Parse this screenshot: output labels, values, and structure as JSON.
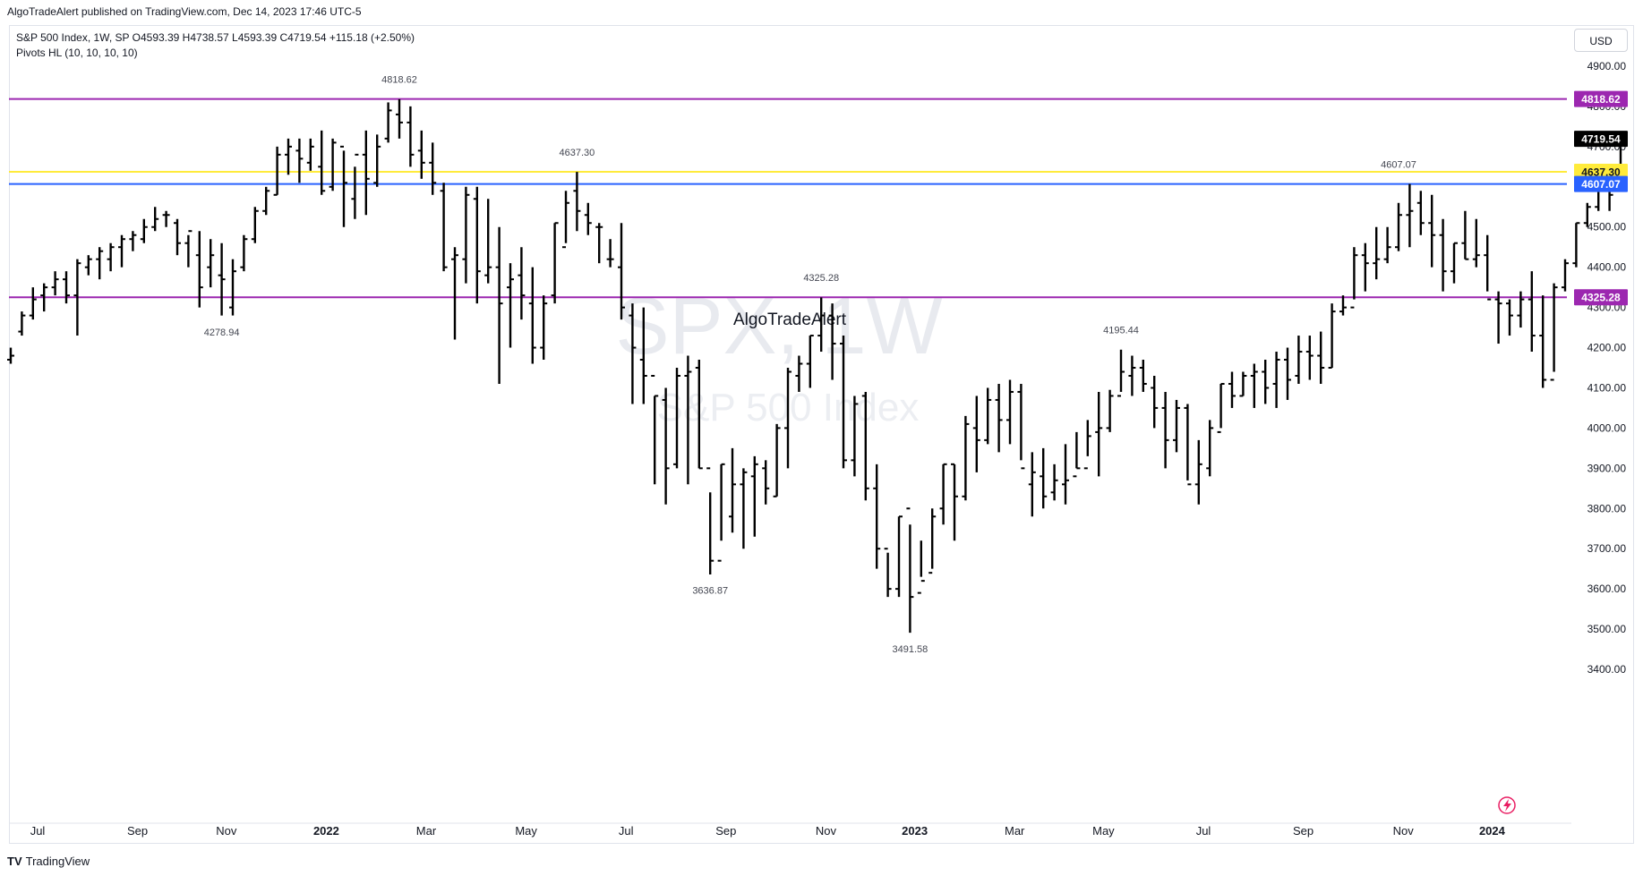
{
  "header": {
    "published": "AlgoTradeAlert published on TradingView.com, Dec 14, 2023 17:46 UTC-5"
  },
  "legend": {
    "line1": "S&P 500 Index, 1W, SP  O4593.39  H4738.57  L4593.39  C4719.54  +115.18 (+2.50%)",
    "line2": "Pivots HL (10, 10, 10, 10)"
  },
  "currency_button": "USD",
  "watermark": {
    "symbol": "SPX, 1W",
    "name": "S&P 500 Index",
    "author": "AlgoTradeAlert"
  },
  "footer": {
    "brand": "TradingView",
    "logo_text": "TV"
  },
  "colors": {
    "bars": "#000000",
    "line_4818": "#9c27b0",
    "line_4637": "#ffeb3b",
    "line_4607": "#2962ff",
    "line_4325": "#9c27b0",
    "last_price_bg": "#000000"
  },
  "chart_data": {
    "type": "ohlc",
    "interval": "1W",
    "y_ticks": [
      3400,
      3500,
      3600,
      3700,
      3800,
      3900,
      4000,
      4100,
      4200,
      4300,
      4400,
      4500,
      4600,
      4700,
      4800,
      4900
    ],
    "y_tick_labels": [
      "3400.00",
      "3500.00",
      "3600.00",
      "3700.00",
      "3800.00",
      "3900.00",
      "4000.00",
      "4100.00",
      "4200.00",
      "4300.00",
      "4400.00",
      "4500.00",
      "4600.00",
      "4700.00",
      "4800.00",
      "4900.00"
    ],
    "x_tick_labels": [
      {
        "label": "Jul",
        "bar": 0
      },
      {
        "label": "Sep",
        "bar": 9
      },
      {
        "label": "Nov",
        "bar": 17
      },
      {
        "label": "2022",
        "bar": 26,
        "bold": true
      },
      {
        "label": "Mar",
        "bar": 35
      },
      {
        "label": "May",
        "bar": 44
      },
      {
        "label": "Jul",
        "bar": 53
      },
      {
        "label": "Sep",
        "bar": 62
      },
      {
        "label": "Nov",
        "bar": 71
      },
      {
        "label": "2023",
        "bar": 79,
        "bold": true
      },
      {
        "label": "Mar",
        "bar": 88
      },
      {
        "label": "May",
        "bar": 96
      },
      {
        "label": "Jul",
        "bar": 105
      },
      {
        "label": "Sep",
        "bar": 114
      },
      {
        "label": "Nov",
        "bar": 123
      },
      {
        "label": "2024",
        "bar": 131,
        "bold": true
      }
    ],
    "bars": [
      [
        4170,
        4200,
        4160,
        4180
      ],
      [
        4240,
        4290,
        4230,
        4280
      ],
      [
        4280,
        4350,
        4270,
        4320
      ],
      [
        4330,
        4360,
        4290,
        4350
      ],
      [
        4350,
        4390,
        4330,
        4370
      ],
      [
        4370,
        4390,
        4310,
        4330
      ],
      [
        4330,
        4420,
        4230,
        4410
      ],
      [
        4400,
        4430,
        4380,
        4420
      ],
      [
        4420,
        4450,
        4370,
        4440
      ],
      [
        4420,
        4460,
        4390,
        4450
      ],
      [
        4450,
        4480,
        4400,
        4470
      ],
      [
        4470,
        4490,
        4440,
        4480
      ],
      [
        4470,
        4520,
        4460,
        4500
      ],
      [
        4500,
        4550,
        4490,
        4520
      ],
      [
        4530,
        4540,
        4500,
        4530
      ],
      [
        4510,
        4520,
        4430,
        4460
      ],
      [
        4460,
        4480,
        4400,
        4490
      ],
      [
        4430,
        4490,
        4300,
        4350
      ],
      [
        4400,
        4470,
        4350,
        4430
      ],
      [
        4380,
        4460,
        4280,
        4370
      ],
      [
        4300,
        4420,
        4280,
        4390
      ],
      [
        4400,
        4480,
        4390,
        4470
      ],
      [
        4470,
        4550,
        4460,
        4540
      ],
      [
        4540,
        4600,
        4530,
        4590
      ],
      [
        4580,
        4700,
        4580,
        4680
      ],
      [
        4680,
        4720,
        4630,
        4700
      ],
      [
        4690,
        4720,
        4610,
        4670
      ],
      [
        4660,
        4720,
        4640,
        4700
      ],
      [
        4650,
        4740,
        4580,
        4590
      ],
      [
        4600,
        4720,
        4590,
        4710
      ],
      [
        4700,
        4690,
        4500,
        4610
      ],
      [
        4570,
        4650,
        4520,
        4680
      ],
      [
        4680,
        4740,
        4530,
        4620
      ],
      [
        4610,
        4730,
        4600,
        4700
      ],
      [
        4720,
        4810,
        4710,
        4790
      ],
      [
        4780,
        4818,
        4720,
        4760
      ],
      [
        4760,
        4800,
        4650,
        4680
      ],
      [
        4690,
        4740,
        4620,
        4660
      ],
      [
        4660,
        4710,
        4580,
        4610
      ],
      [
        4590,
        4610,
        4390,
        4400
      ],
      [
        4420,
        4450,
        4220,
        4430
      ],
      [
        4420,
        4600,
        4360,
        4580
      ],
      [
        4570,
        4600,
        4310,
        4390
      ],
      [
        4380,
        4570,
        4360,
        4400
      ],
      [
        4400,
        4500,
        4110,
        4310
      ],
      [
        4350,
        4410,
        4200,
        4370
      ],
      [
        4380,
        4450,
        4270,
        4330
      ],
      [
        4310,
        4400,
        4160,
        4200
      ],
      [
        4200,
        4330,
        4170,
        4310
      ],
      [
        4330,
        4510,
        4310,
        4510
      ],
      [
        4450,
        4590,
        4460,
        4560
      ],
      [
        4590,
        4637,
        4490,
        4540
      ],
      [
        4530,
        4560,
        4480,
        4510
      ],
      [
        4500,
        4510,
        4410,
        4500
      ],
      [
        4420,
        4470,
        4400,
        4420
      ],
      [
        4400,
        4510,
        4270,
        4300
      ],
      [
        4280,
        4310,
        4060,
        4200
      ],
      [
        4170,
        4300,
        4060,
        4130
      ],
      [
        4130,
        4080,
        3860,
        4080
      ],
      [
        4070,
        4100,
        3810,
        3900
      ],
      [
        3910,
        4150,
        3900,
        4130
      ],
      [
        4130,
        4180,
        3860,
        4140
      ],
      [
        4150,
        4170,
        3900,
        3900
      ],
      [
        3900,
        3840,
        3636,
        3670
      ],
      [
        3670,
        3910,
        3720,
        3910
      ],
      [
        3780,
        3950,
        3740,
        3860
      ],
      [
        3860,
        3900,
        3700,
        3890
      ],
      [
        3880,
        3930,
        3730,
        3910
      ],
      [
        3900,
        3920,
        3810,
        3850
      ],
      [
        3830,
        4010,
        3830,
        4000
      ],
      [
        4000,
        4150,
        3900,
        4140
      ],
      [
        4130,
        4180,
        4090,
        4160
      ],
      [
        4160,
        4230,
        4100,
        4230
      ],
      [
        4230,
        4325,
        4190,
        4280
      ],
      [
        4280,
        4310,
        4120,
        4210
      ],
      [
        4210,
        4230,
        3900,
        3920
      ],
      [
        3920,
        4080,
        3880,
        4060
      ],
      [
        4080,
        4090,
        3820,
        3850
      ],
      [
        3850,
        3910,
        3650,
        3700
      ],
      [
        3700,
        3690,
        3580,
        3600
      ],
      [
        3600,
        3780,
        3580,
        3780
      ],
      [
        3800,
        3760,
        3491,
        3580
      ],
      [
        3590,
        3720,
        3630,
        3620
      ],
      [
        3640,
        3800,
        3650,
        3780
      ],
      [
        3800,
        3910,
        3760,
        3910
      ],
      [
        3910,
        3910,
        3720,
        3830
      ],
      [
        3830,
        4030,
        3820,
        4010
      ],
      [
        4000,
        4080,
        3890,
        3970
      ],
      [
        3970,
        4100,
        3960,
        4070
      ],
      [
        4070,
        4110,
        3940,
        4020
      ],
      [
        4020,
        4120,
        3960,
        4090
      ],
      [
        4090,
        4110,
        3920,
        3900
      ],
      [
        3860,
        3940,
        3780,
        3890
      ],
      [
        3880,
        3950,
        3800,
        3830
      ],
      [
        3840,
        3910,
        3820,
        3870
      ],
      [
        3860,
        3960,
        3810,
        3870
      ],
      [
        3880,
        3990,
        3900,
        3900
      ],
      [
        3900,
        4020,
        3930,
        3980
      ],
      [
        3990,
        4090,
        3880,
        4000
      ],
      [
        4000,
        4095,
        3990,
        4080
      ],
      [
        4080,
        4195,
        4090,
        4140
      ],
      [
        4130,
        4180,
        4080,
        4150
      ],
      [
        4150,
        4170,
        4090,
        4110
      ],
      [
        4100,
        4130,
        4000,
        4050
      ],
      [
        4050,
        4090,
        3900,
        3970
      ],
      [
        3970,
        4070,
        3940,
        4050
      ],
      [
        4050,
        4060,
        3870,
        3860
      ],
      [
        3860,
        3970,
        3810,
        3910
      ],
      [
        3900,
        4020,
        3880,
        4000
      ],
      [
        3990,
        4110,
        4000,
        4110
      ],
      [
        4110,
        4140,
        4050,
        4080
      ],
      [
        4080,
        4140,
        4080,
        4130
      ],
      [
        4130,
        4160,
        4050,
        4140
      ],
      [
        4140,
        4170,
        4060,
        4100
      ],
      [
        4110,
        4190,
        4050,
        4170
      ],
      [
        4170,
        4200,
        4070,
        4120
      ],
      [
        4130,
        4230,
        4110,
        4190
      ],
      [
        4190,
        4230,
        4120,
        4180
      ],
      [
        4180,
        4240,
        4110,
        4150
      ],
      [
        4150,
        4310,
        4150,
        4290
      ],
      [
        4290,
        4330,
        4280,
        4300
      ],
      [
        4300,
        4450,
        4320,
        4430
      ],
      [
        4430,
        4460,
        4340,
        4410
      ],
      [
        4410,
        4500,
        4370,
        4420
      ],
      [
        4420,
        4500,
        4410,
        4450
      ],
      [
        4450,
        4560,
        4440,
        4530
      ],
      [
        4530,
        4607,
        4450,
        4540
      ],
      [
        4560,
        4590,
        4480,
        4510
      ],
      [
        4510,
        4580,
        4400,
        4480
      ],
      [
        4480,
        4520,
        4340,
        4390
      ],
      [
        4390,
        4460,
        4360,
        4460
      ],
      [
        4460,
        4540,
        4420,
        4420
      ],
      [
        4420,
        4520,
        4400,
        4430
      ],
      [
        4430,
        4480,
        4340,
        4320
      ],
      [
        4320,
        4340,
        4210,
        4310
      ],
      [
        4310,
        4320,
        4230,
        4280
      ],
      [
        4280,
        4340,
        4250,
        4320
      ],
      [
        4320,
        4390,
        4190,
        4230
      ],
      [
        4230,
        4330,
        4100,
        4120
      ],
      [
        4120,
        4360,
        4140,
        4350
      ],
      [
        4350,
        4420,
        4340,
        4410
      ],
      [
        4410,
        4510,
        4400,
        4510
      ],
      [
        4510,
        4560,
        4500,
        4550
      ],
      [
        4550,
        4600,
        4540,
        4600
      ],
      [
        4600,
        4610,
        4540,
        4580
      ],
      [
        4593,
        4738,
        4593,
        4719
      ]
    ],
    "pivot_labels": [
      {
        "text": "4818.62",
        "bar": 35,
        "value": 4818.62,
        "pos": "high"
      },
      {
        "text": "4278.94",
        "bar": 19,
        "value": 4278.94,
        "pos": "low"
      },
      {
        "text": "4637.30",
        "bar": 51,
        "value": 4637.3,
        "pos": "high"
      },
      {
        "text": "3636.87",
        "bar": 63,
        "value": 3636.87,
        "pos": "low"
      },
      {
        "text": "4325.28",
        "bar": 73,
        "value": 4325.28,
        "pos": "high"
      },
      {
        "text": "3491.58",
        "bar": 81,
        "value": 3491.58,
        "pos": "low"
      },
      {
        "text": "4195.44",
        "bar": 100,
        "value": 4195.44,
        "pos": "high"
      },
      {
        "text": "4607.07",
        "bar": 125,
        "value": 4607.07,
        "pos": "high"
      }
    ],
    "hlines": [
      {
        "value": 4818.62,
        "label": "4818.62",
        "color": "#9c27b0",
        "width": 2
      },
      {
        "value": 4637.3,
        "label": "4637.30",
        "color": "#ffeb3b",
        "width": 2,
        "text_color": "#131722"
      },
      {
        "value": 4607.07,
        "label": "4607.07",
        "color": "#2962ff",
        "width": 2
      },
      {
        "value": 4325.28,
        "label": "4325.28",
        "color": "#9c27b0",
        "width": 2
      }
    ],
    "last_price": {
      "value": 4719.54,
      "label": "4719.54"
    }
  }
}
